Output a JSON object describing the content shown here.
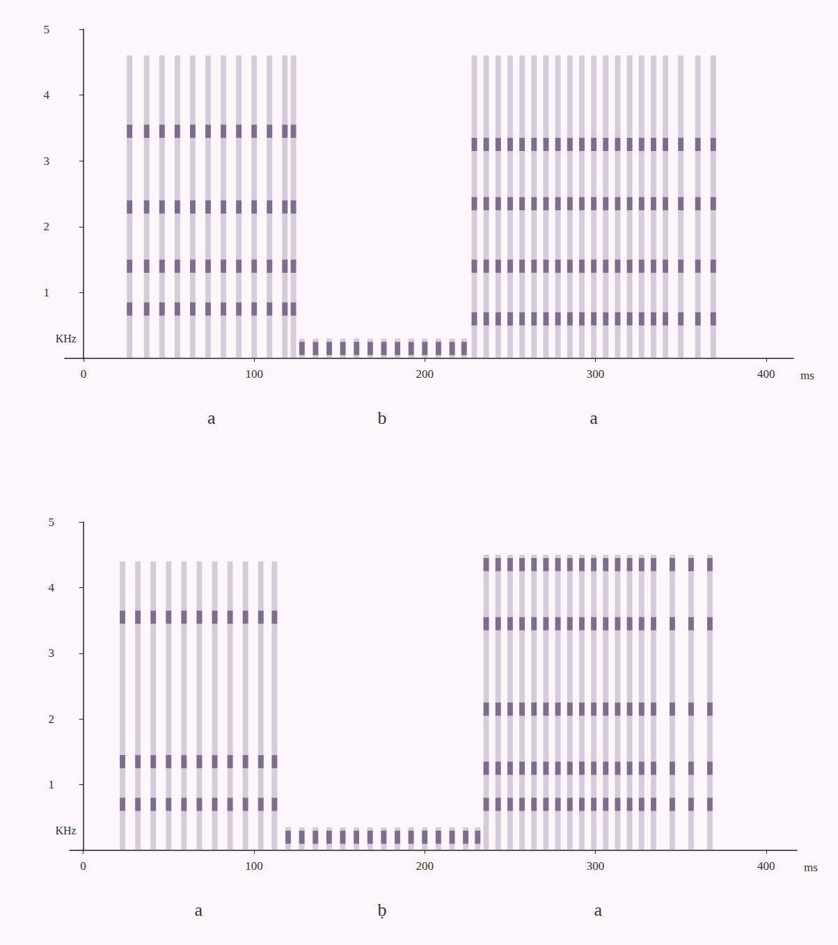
{
  "chart_data": [
    {
      "type": "spectrogram",
      "color": "#6e5c80",
      "grid": false,
      "x_label": "ms",
      "y_label": "KHz",
      "xlim": [
        -11,
        416
      ],
      "xticks": [
        0,
        100,
        200,
        300,
        400
      ],
      "ylim": [
        0,
        5
      ],
      "yticks": [
        1,
        2,
        3,
        4,
        5
      ],
      "segments": [
        {
          "label": "a",
          "start": 25,
          "end": 125,
          "top": 4.6,
          "formants": [
            0.75,
            1.4,
            2.3,
            3.45
          ],
          "pulses": [
            27,
            37,
            46,
            55,
            64,
            73,
            82,
            91,
            100,
            109,
            118,
            123
          ]
        },
        {
          "label": "b",
          "start": 125,
          "end": 225,
          "top": 0.3,
          "formants": [
            0.15
          ],
          "pulses": [
            128,
            136,
            144,
            152,
            160,
            168,
            176,
            184,
            192,
            200,
            208,
            216,
            223
          ]
        },
        {
          "label": "a",
          "start": 228,
          "end": 370,
          "top": 4.6,
          "formants": [
            0.6,
            1.4,
            2.35,
            3.25
          ],
          "pulses": [
            229,
            236,
            243,
            250,
            257,
            264,
            271,
            278,
            285,
            292,
            299,
            306,
            313,
            320,
            327,
            334,
            341,
            350,
            360,
            369
          ]
        }
      ]
    },
    {
      "type": "spectrogram",
      "color": "#6e5c80",
      "grid": false,
      "x_label": "ms",
      "y_label": "KHz",
      "xlim": [
        -8,
        418
      ],
      "xticks": [
        0,
        100,
        200,
        300,
        400
      ],
      "ylim": [
        0,
        5
      ],
      "yticks": [
        1,
        2,
        3,
        4,
        5
      ],
      "segments": [
        {
          "label": "a",
          "start": 20,
          "end": 115,
          "top": 4.4,
          "formants": [
            0.7,
            1.35,
            3.55
          ],
          "pulses": [
            23,
            32,
            41,
            50,
            59,
            68,
            77,
            86,
            95,
            104,
            112
          ]
        },
        {
          "label": "ḅ",
          "start": 117,
          "end": 233,
          "top": 0.35,
          "formants": [
            0.2
          ],
          "pulses": [
            120,
            128,
            136,
            144,
            152,
            160,
            168,
            176,
            184,
            192,
            200,
            208,
            216,
            224,
            231
          ]
        },
        {
          "label": "a",
          "start": 233,
          "end": 370,
          "top": 4.5,
          "formants": [
            0.7,
            1.25,
            2.15,
            3.45,
            4.35
          ],
          "pulses": [
            236,
            243,
            250,
            257,
            264,
            271,
            278,
            285,
            292,
            299,
            306,
            313,
            320,
            327,
            334,
            345,
            356,
            367
          ]
        }
      ]
    }
  ]
}
